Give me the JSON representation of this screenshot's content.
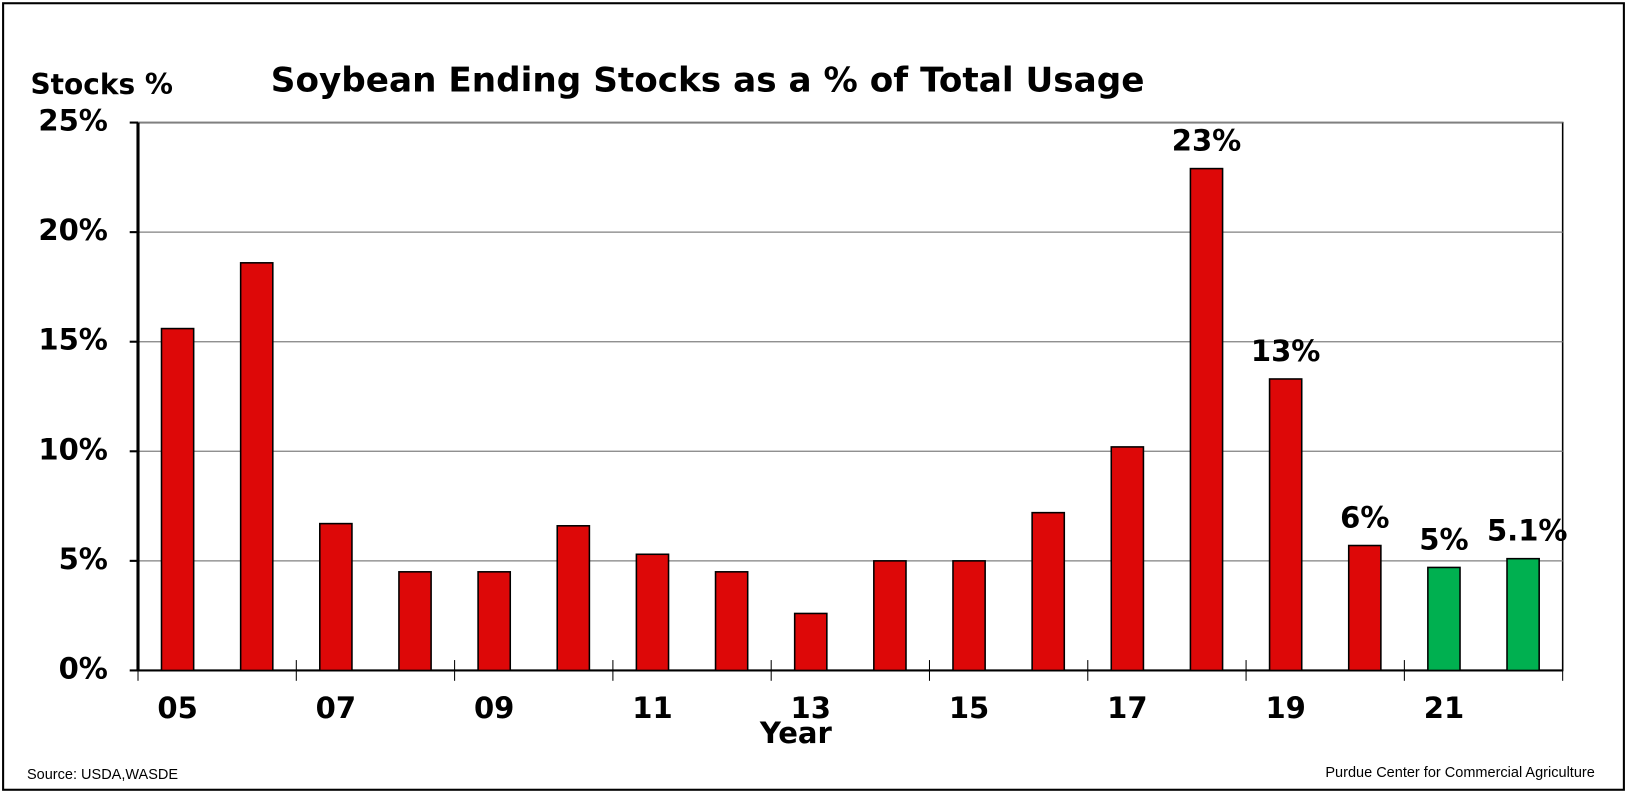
{
  "chart_data": {
    "type": "bar",
    "title": "Soybean Ending Stocks as a % of Total Usage",
    "y_label": "Stocks %",
    "x_label": "Year",
    "source": "Source: USDA,WASDE",
    "credit": "Purdue Center for Commercial Agriculture",
    "categories": [
      "05",
      null,
      "07",
      null,
      "09",
      null,
      "11",
      null,
      "13",
      null,
      "15",
      null,
      "17",
      null,
      "19",
      null,
      "21",
      null
    ],
    "values": [
      15.6,
      18.6,
      6.7,
      4.5,
      4.5,
      6.6,
      5.3,
      4.5,
      2.6,
      5.0,
      5.0,
      7.2,
      10.2,
      22.9,
      13.3,
      5.7,
      4.7,
      5.1
    ],
    "value_labels": [
      null,
      null,
      null,
      null,
      null,
      null,
      null,
      null,
      null,
      null,
      null,
      null,
      null,
      "23%",
      "13%",
      "6%",
      "5%",
      "5.1%"
    ],
    "colors": [
      "#dd0808",
      "#dd0808",
      "#dd0808",
      "#dd0808",
      "#dd0808",
      "#dd0808",
      "#dd0808",
      "#dd0808",
      "#dd0808",
      "#dd0808",
      "#dd0808",
      "#dd0808",
      "#dd0808",
      "#dd0808",
      "#dd0808",
      "#dd0808",
      "#00b050",
      "#00b050"
    ],
    "ylim": [
      0,
      25
    ],
    "yticks": [
      {
        "value": 0,
        "label": "0%"
      },
      {
        "value": 5,
        "label": "5%"
      },
      {
        "value": 10,
        "label": "10%"
      },
      {
        "value": 15,
        "label": "15%"
      },
      {
        "value": 20,
        "label": "20%"
      },
      {
        "value": 25,
        "label": "25%"
      }
    ],
    "grid": true
  }
}
